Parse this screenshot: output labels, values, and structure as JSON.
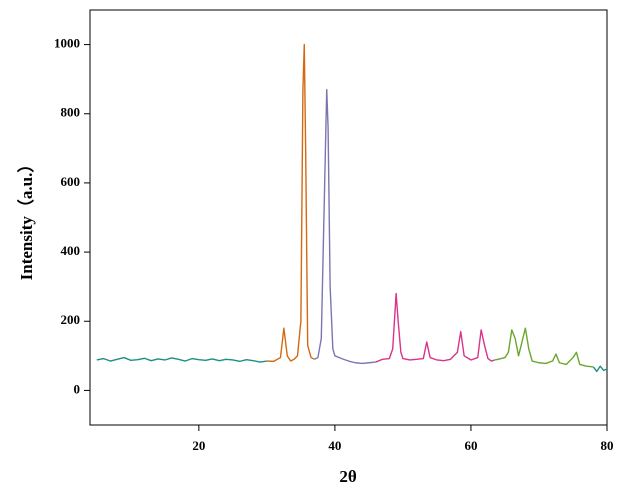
{
  "chart_data": {
    "type": "line",
    "x_label": "2θ",
    "y_label": "Intensity（a.u.）",
    "xlim": [
      4,
      80
    ],
    "ylim": [
      -100,
      1100
    ],
    "xticks": [
      20,
      40,
      60,
      80
    ],
    "yticks": [
      0,
      200,
      400,
      600,
      800,
      1000
    ],
    "series": [
      {
        "color": "#1f8f7a",
        "x": [
          5,
          6,
          7,
          8,
          9,
          10,
          11,
          12,
          13,
          14,
          15,
          16,
          17,
          18,
          19,
          20,
          21,
          22,
          23,
          24,
          25,
          26,
          27,
          28,
          29,
          30
        ],
        "values": [
          88,
          92,
          85,
          90,
          95,
          87,
          89,
          93,
          86,
          91,
          88,
          94,
          90,
          85,
          92,
          89,
          87,
          91,
          86,
          90,
          88,
          84,
          89,
          86,
          82,
          85
        ]
      },
      {
        "color": "#d4690f",
        "x": [
          30,
          31,
          32,
          32.5,
          33,
          33.5,
          34,
          34.5,
          35,
          35.3,
          35.5,
          35.7,
          36,
          36.5,
          37
        ],
        "values": [
          85,
          84,
          95,
          180,
          100,
          85,
          90,
          100,
          200,
          870,
          1000,
          700,
          130,
          95,
          90
        ]
      },
      {
        "color": "#7b76b0",
        "x": [
          37,
          37.5,
          38,
          38.5,
          38.8,
          39,
          39.3,
          39.7,
          40,
          41,
          42,
          43,
          44,
          45,
          46
        ],
        "values": [
          90,
          95,
          150,
          600,
          870,
          760,
          300,
          120,
          100,
          92,
          85,
          80,
          78,
          80,
          82
        ]
      },
      {
        "color": "#d8348a",
        "x": [
          46,
          47,
          48,
          48.5,
          49,
          49.3,
          49.7,
          50,
          51,
          52,
          53,
          53.5,
          54,
          55,
          56,
          57,
          58,
          58.5,
          59,
          60,
          61,
          61.5,
          62,
          62.5,
          63,
          63.5
        ],
        "values": [
          82,
          90,
          92,
          120,
          280,
          200,
          110,
          92,
          88,
          90,
          92,
          140,
          95,
          88,
          86,
          90,
          110,
          170,
          100,
          88,
          95,
          175,
          130,
          92,
          85,
          88
        ]
      },
      {
        "color": "#6aa62e",
        "x": [
          63.5,
          64,
          65,
          65.5,
          66,
          66.5,
          67,
          67.5,
          68,
          68.5,
          69,
          70,
          71,
          72,
          72.5,
          73,
          74,
          75,
          75.5,
          76,
          77,
          78
        ],
        "values": [
          88,
          90,
          95,
          110,
          175,
          150,
          100,
          140,
          180,
          120,
          85,
          80,
          78,
          85,
          105,
          80,
          75,
          95,
          110,
          75,
          70,
          68
        ]
      },
      {
        "color": "#1f8f7a",
        "x": [
          78,
          78.5,
          79,
          79.5,
          80
        ],
        "values": [
          68,
          55,
          70,
          58,
          62
        ]
      }
    ]
  }
}
